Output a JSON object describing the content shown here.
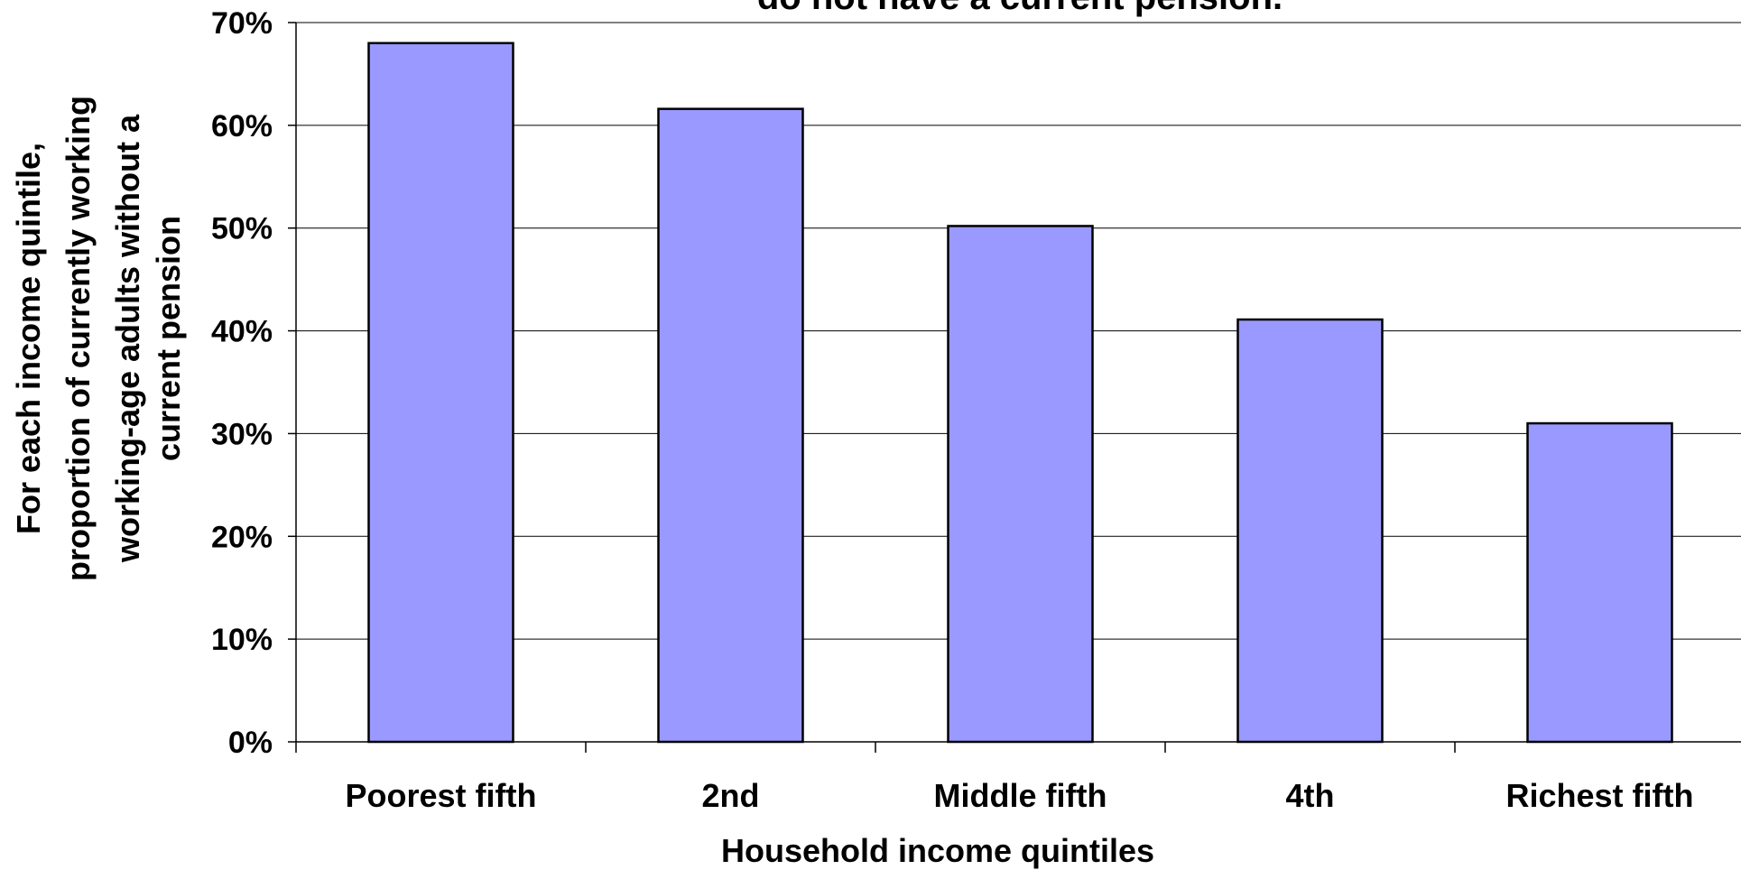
{
  "chart_data": {
    "type": "bar",
    "title": "do not have a current pension.",
    "xlabel": "Household income quintiles",
    "ylabel_lines": [
      "For each income quintile,",
      "proportion of currently working",
      "working-age adults without a",
      "current pension"
    ],
    "categories": [
      "Poorest fifth",
      "2nd",
      "Middle fifth",
      "4th",
      "Richest fifth"
    ],
    "values": [
      0.68,
      0.616,
      0.502,
      0.411,
      0.31
    ],
    "ylim": [
      0,
      0.7
    ],
    "y_ticks": [
      {
        "value": 0,
        "label": "0%"
      },
      {
        "value": 0.1,
        "label": "10%"
      },
      {
        "value": 0.2,
        "label": "20%"
      },
      {
        "value": 0.3,
        "label": "30%"
      },
      {
        "value": 0.4,
        "label": "40%"
      },
      {
        "value": 0.5,
        "label": "50%"
      },
      {
        "value": 0.6,
        "label": "60%"
      },
      {
        "value": 0.7,
        "label": "70%"
      }
    ],
    "grid": true,
    "legend": "none",
    "colors": {
      "bar_fill": "#9999ff",
      "bar_stroke": "#000000",
      "grid": "#000000",
      "axis": "#000000"
    }
  }
}
